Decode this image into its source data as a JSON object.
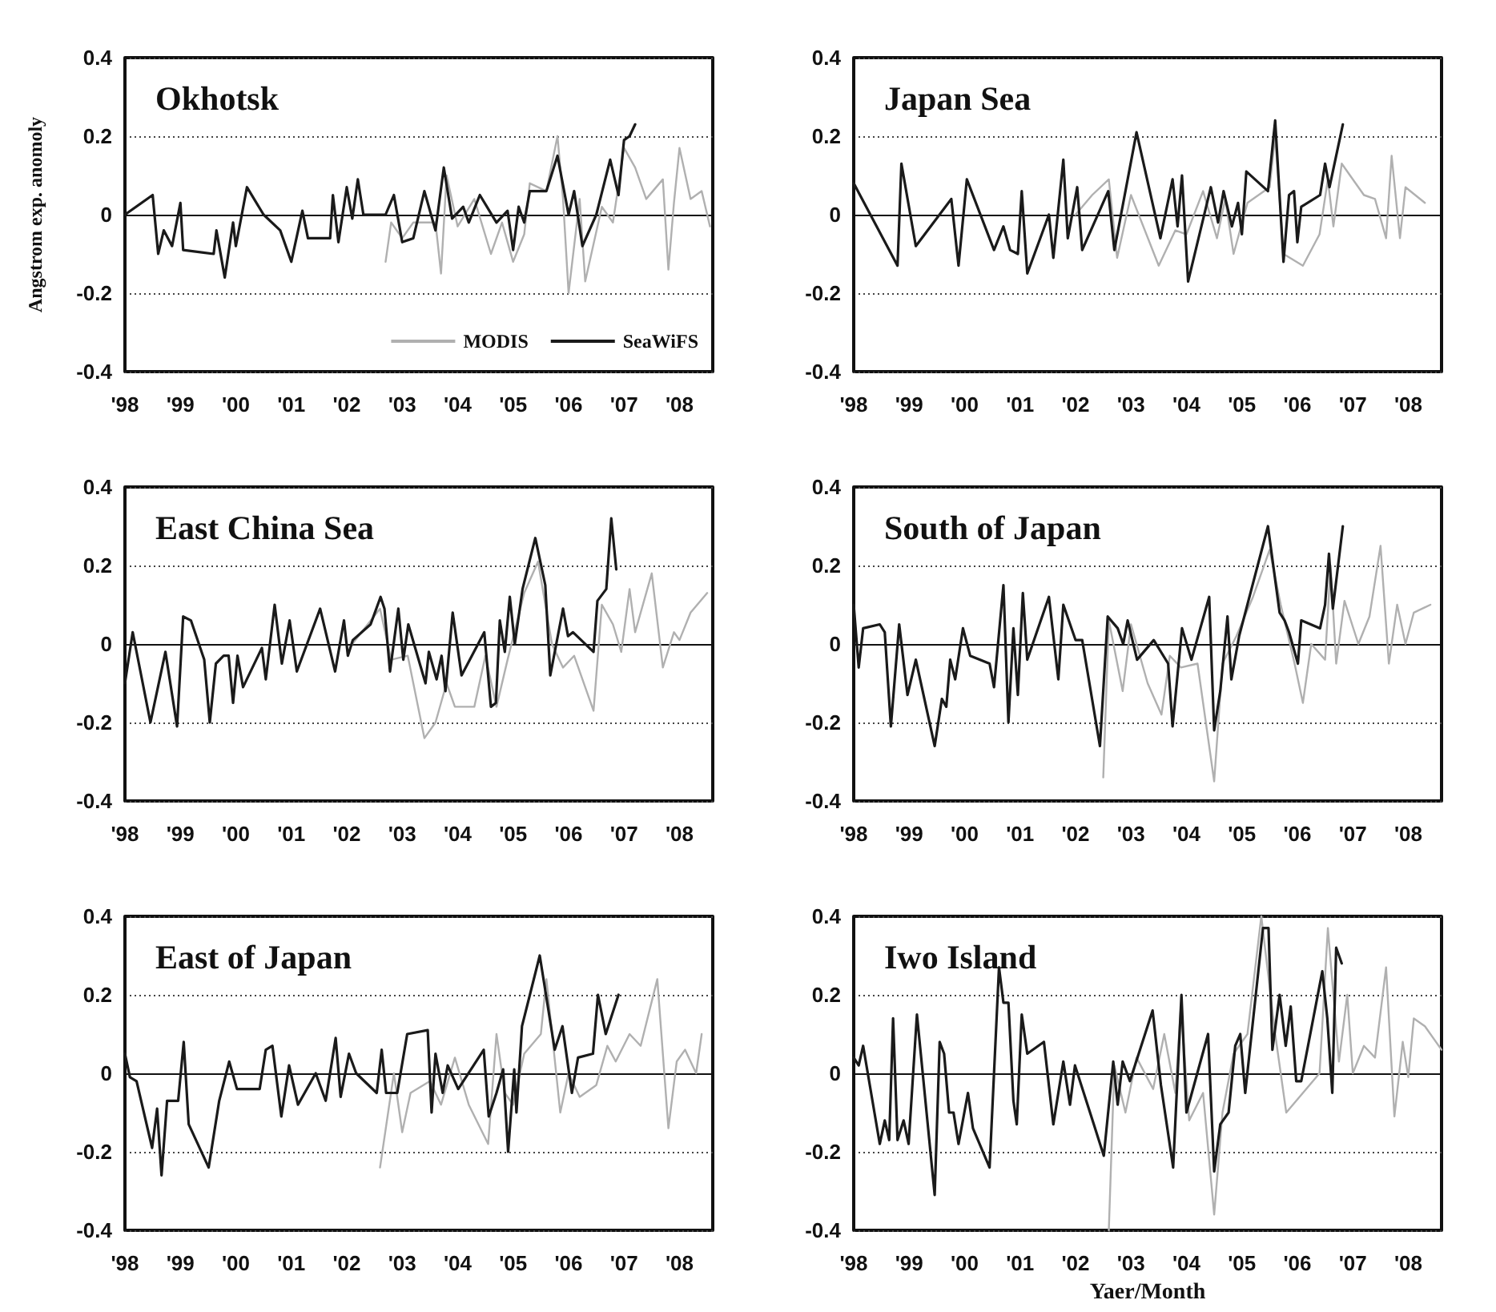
{
  "chart_data": [
    {
      "type": "line",
      "title": "Okhotsk",
      "ylabel": "Angstrom exp. anomoly",
      "legend": "bottom right",
      "grid": "y",
      "marker": "none",
      "xlim": [
        1998,
        2008.6
      ],
      "ylim": [
        -0.4,
        0.4
      ],
      "yticks": [
        -0.4,
        -0.2,
        0,
        0.2,
        0.4
      ],
      "xticks": [
        {
          "value": 1998,
          "label": "'98"
        },
        {
          "value": 1999,
          "label": "'99"
        },
        {
          "value": 2000,
          "label": "'00"
        },
        {
          "value": 2001,
          "label": "'01"
        },
        {
          "value": 2002,
          "label": "'02"
        },
        {
          "value": 2003,
          "label": "'03"
        },
        {
          "value": 2004,
          "label": "'04"
        },
        {
          "value": 2005,
          "label": "'05"
        },
        {
          "value": 2006,
          "label": "'06"
        },
        {
          "value": 2007,
          "label": "'07"
        },
        {
          "value": 2008,
          "label": "'08"
        }
      ],
      "series": [
        {
          "name": "MODIS",
          "color": "#b0b0b0",
          "x": [
            2002.7,
            2002.8,
            2003.0,
            2003.2,
            2003.6,
            2003.7,
            2003.8,
            2004.0,
            2004.3,
            2004.6,
            2004.8,
            2005.0,
            2005.2,
            2005.3,
            2005.6,
            2005.8,
            2005.9,
            2006.0,
            2006.2,
            2006.3,
            2006.6,
            2006.8,
            2007.0,
            2007.2,
            2007.4,
            2007.7,
            2007.8,
            2007.9,
            2008.0,
            2008.2,
            2008.4,
            2008.55
          ],
          "values": [
            -0.12,
            -0.02,
            -0.06,
            -0.02,
            -0.02,
            -0.15,
            0.1,
            -0.03,
            0.04,
            -0.1,
            -0.02,
            -0.12,
            -0.05,
            0.08,
            0.06,
            0.2,
            0.04,
            -0.2,
            0.04,
            -0.17,
            0.02,
            -0.02,
            0.17,
            0.12,
            0.04,
            0.09,
            -0.14,
            0.03,
            0.17,
            0.04,
            0.06,
            -0.03
          ]
        },
        {
          "name": "SeaWiFS",
          "color": "#1a1a1a",
          "x": [
            1998,
            1998.5,
            1998.6,
            1998.7,
            1998.85,
            1999.0,
            1999.05,
            1999.6,
            1999.65,
            1999.8,
            1999.95,
            2000.0,
            2000.2,
            2000.5,
            2000.8,
            2001.0,
            2001.2,
            2001.3,
            2001.7,
            2001.75,
            2001.85,
            2002.0,
            2002.1,
            2002.2,
            2002.3,
            2002.7,
            2002.85,
            2003.0,
            2003.2,
            2003.4,
            2003.6,
            2003.75,
            2003.9,
            2004.1,
            2004.2,
            2004.4,
            2004.7,
            2004.9,
            2005.0,
            2005.1,
            2005.2,
            2005.3,
            2005.6,
            2005.8,
            2006.0,
            2006.1,
            2006.25,
            2006.5,
            2006.75,
            2006.9,
            2007.0,
            2007.1,
            2007.2
          ],
          "values": [
            0.0,
            0.05,
            -0.1,
            -0.04,
            -0.08,
            0.03,
            -0.09,
            -0.1,
            -0.04,
            -0.16,
            -0.02,
            -0.08,
            0.07,
            0.0,
            -0.04,
            -0.12,
            0.01,
            -0.06,
            -0.06,
            0.05,
            -0.07,
            0.07,
            -0.01,
            0.09,
            0.0,
            0.0,
            0.05,
            -0.07,
            -0.06,
            0.06,
            -0.04,
            0.12,
            -0.01,
            0.02,
            -0.02,
            0.05,
            -0.02,
            0.01,
            -0.09,
            0.02,
            -0.02,
            0.06,
            0.06,
            0.15,
            0.0,
            0.06,
            -0.08,
            0.0,
            0.14,
            0.05,
            0.19,
            0.2,
            0.23
          ]
        }
      ]
    },
    {
      "type": "line",
      "title": "Japan Sea",
      "grid": "y",
      "marker": "none",
      "xlim": [
        1998,
        2008.6
      ],
      "ylim": [
        -0.4,
        0.4
      ],
      "yticks": [
        -0.4,
        -0.2,
        0,
        0.2,
        0.4
      ],
      "xticks": [
        {
          "value": 1998,
          "label": "'98"
        },
        {
          "value": 1999,
          "label": "'99"
        },
        {
          "value": 2000,
          "label": "'00"
        },
        {
          "value": 2001,
          "label": "'01"
        },
        {
          "value": 2002,
          "label": "'02"
        },
        {
          "value": 2003,
          "label": "'03"
        },
        {
          "value": 2004,
          "label": "'04"
        },
        {
          "value": 2005,
          "label": "'05"
        },
        {
          "value": 2006,
          "label": "'06"
        },
        {
          "value": 2007,
          "label": "'07"
        },
        {
          "value": 2008,
          "label": "'08"
        }
      ],
      "series": [
        {
          "color": "#b0b0b0",
          "x": [
            2002.0,
            2002.3,
            2002.6,
            2002.75,
            2003.0,
            2003.5,
            2003.8,
            2004.0,
            2004.3,
            2004.55,
            2004.7,
            2004.85,
            2005.1,
            2005.5,
            2005.6,
            2005.75,
            2006.1,
            2006.4,
            2006.55,
            2006.65,
            2006.8,
            2006.95,
            2007.2,
            2007.4,
            2007.6,
            2007.7,
            2007.85,
            2007.95,
            2008.3
          ],
          "values": [
            0.0,
            0.05,
            0.09,
            -0.11,
            0.05,
            -0.13,
            -0.04,
            -0.05,
            0.06,
            -0.06,
            0.04,
            -0.1,
            0.03,
            0.07,
            0.2,
            -0.1,
            -0.13,
            -0.05,
            0.09,
            -0.03,
            0.13,
            0.1,
            0.05,
            0.04,
            -0.06,
            0.15,
            -0.06,
            0.07,
            0.03
          ]
        },
        {
          "color": "#1a1a1a",
          "x": [
            1998,
            1998.79,
            1998.86,
            1999.12,
            1999.76,
            1999.89,
            2000.04,
            2000.53,
            2000.7,
            2000.82,
            2000.96,
            2001.03,
            2001.13,
            2001.52,
            2001.6,
            2001.78,
            2001.86,
            2002.03,
            2002.12,
            2002.59,
            2002.7,
            2003.1,
            2003.53,
            2003.75,
            2003.84,
            2003.92,
            2004.03,
            2004.44,
            2004.57,
            2004.67,
            2004.82,
            2004.93,
            2005.0,
            2005.08,
            2005.47,
            2005.6,
            2005.75,
            2005.85,
            2005.94,
            2006.0,
            2006.07,
            2006.41,
            2006.5,
            2006.58,
            2006.82
          ],
          "values": [
            0.08,
            -0.13,
            0.13,
            -0.08,
            0.04,
            -0.13,
            0.09,
            -0.09,
            -0.03,
            -0.09,
            -0.1,
            0.06,
            -0.15,
            0.0,
            -0.11,
            0.14,
            -0.06,
            0.07,
            -0.09,
            0.06,
            -0.09,
            0.21,
            -0.06,
            0.09,
            -0.03,
            0.1,
            -0.17,
            0.07,
            -0.02,
            0.06,
            -0.03,
            0.03,
            -0.05,
            0.11,
            0.06,
            0.24,
            -0.12,
            0.05,
            0.06,
            -0.07,
            0.02,
            0.05,
            0.13,
            0.07,
            0.23
          ]
        }
      ]
    },
    {
      "type": "line",
      "title": "East China Sea",
      "grid": "y",
      "marker": "none",
      "xlim": [
        1998,
        2008.6
      ],
      "ylim": [
        -0.4,
        0.4
      ],
      "yticks": [
        -0.4,
        -0.2,
        0,
        0.2,
        0.4
      ],
      "xticks": [
        {
          "value": 1998,
          "label": "'98"
        },
        {
          "value": 1999,
          "label": "'99"
        },
        {
          "value": 2000,
          "label": "'00"
        },
        {
          "value": 2001,
          "label": "'01"
        },
        {
          "value": 2002,
          "label": "'02"
        },
        {
          "value": 2003,
          "label": "'03"
        },
        {
          "value": 2004,
          "label": "'04"
        },
        {
          "value": 2005,
          "label": "'05"
        },
        {
          "value": 2006,
          "label": "'06"
        },
        {
          "value": 2007,
          "label": "'07"
        },
        {
          "value": 2008,
          "label": "'08"
        }
      ],
      "series": [
        {
          "color": "#b0b0b0",
          "x": [
            2002.1,
            2002.6,
            2002.8,
            2003.1,
            2003.4,
            2003.6,
            2003.8,
            2003.95,
            2004.3,
            2004.5,
            2004.7,
            2004.9,
            2005.2,
            2005.45,
            2005.7,
            2005.9,
            2006.1,
            2006.45,
            2006.6,
            2006.8,
            2006.95,
            2007.1,
            2007.2,
            2007.5,
            2007.7,
            2007.9,
            2008.0,
            2008.2,
            2008.5
          ],
          "values": [
            0.0,
            0.09,
            -0.04,
            -0.03,
            -0.24,
            -0.2,
            -0.1,
            -0.16,
            -0.16,
            -0.03,
            -0.16,
            -0.04,
            0.13,
            0.21,
            0.0,
            -0.06,
            -0.03,
            -0.17,
            0.1,
            0.05,
            -0.02,
            0.14,
            0.03,
            0.18,
            -0.06,
            0.03,
            0.01,
            0.08,
            0.13
          ]
        },
        {
          "color": "#1a1a1a",
          "x": [
            1998,
            1998.14,
            1998.46,
            1998.73,
            1998.94,
            1999.05,
            1999.19,
            1999.43,
            1999.53,
            1999.64,
            1999.78,
            1999.87,
            1999.95,
            2000.03,
            2000.13,
            2000.47,
            2000.54,
            2000.7,
            2000.83,
            2000.97,
            2001.1,
            2001.52,
            2001.79,
            2001.95,
            2002.02,
            2002.11,
            2002.43,
            2002.61,
            2002.68,
            2002.78,
            2002.93,
            2003.02,
            2003.11,
            2003.42,
            2003.48,
            2003.62,
            2003.71,
            2003.78,
            2003.91,
            2004.07,
            2004.48,
            2004.6,
            2004.69,
            2004.76,
            2004.85,
            2004.94,
            2005.03,
            2005.17,
            2005.4,
            2005.58,
            2005.67,
            2005.9,
            2005.99,
            2006.08,
            2006.45,
            2006.52,
            2006.68,
            2006.77,
            2006.86
          ],
          "values": [
            -0.1,
            0.03,
            -0.2,
            -0.02,
            -0.21,
            0.07,
            0.06,
            -0.04,
            -0.2,
            -0.05,
            -0.03,
            -0.03,
            -0.15,
            -0.03,
            -0.11,
            -0.01,
            -0.09,
            0.1,
            -0.05,
            0.06,
            -0.07,
            0.09,
            -0.07,
            0.06,
            -0.03,
            0.01,
            0.05,
            0.12,
            0.09,
            -0.07,
            0.09,
            -0.04,
            0.05,
            -0.1,
            -0.02,
            -0.09,
            -0.03,
            -0.12,
            0.08,
            -0.08,
            0.03,
            -0.16,
            -0.15,
            0.06,
            -0.02,
            0.12,
            0.0,
            0.14,
            0.27,
            0.15,
            -0.08,
            0.09,
            0.02,
            0.03,
            -0.02,
            0.11,
            0.14,
            0.32,
            0.19
          ]
        }
      ]
    },
    {
      "type": "line",
      "title": "South of Japan",
      "grid": "y",
      "marker": "none",
      "xlim": [
        1998,
        2008.6
      ],
      "ylim": [
        -0.4,
        0.4
      ],
      "yticks": [
        -0.4,
        -0.2,
        0,
        0.2,
        0.4
      ],
      "xticks": [
        {
          "value": 1998,
          "label": "'98"
        },
        {
          "value": 1999,
          "label": "'99"
        },
        {
          "value": 2000,
          "label": "'00"
        },
        {
          "value": 2001,
          "label": "'01"
        },
        {
          "value": 2002,
          "label": "'02"
        },
        {
          "value": 2003,
          "label": "'03"
        },
        {
          "value": 2004,
          "label": "'04"
        },
        {
          "value": 2005,
          "label": "'05"
        },
        {
          "value": 2006,
          "label": "'06"
        },
        {
          "value": 2007,
          "label": "'07"
        },
        {
          "value": 2008,
          "label": "'08"
        }
      ],
      "series": [
        {
          "color": "#b0b0b0",
          "x": [
            2002.5,
            2002.6,
            2002.85,
            2003.0,
            2003.3,
            2003.55,
            2003.7,
            2003.9,
            2004.2,
            2004.5,
            2004.65,
            2004.9,
            2005.2,
            2005.5,
            2005.7,
            2005.95,
            2006.1,
            2006.25,
            2006.5,
            2006.6,
            2006.7,
            2006.85,
            2007.1,
            2007.3,
            2007.5,
            2007.65,
            2007.8,
            2007.95,
            2008.1,
            2008.4
          ],
          "values": [
            -0.34,
            0.06,
            -0.12,
            0.05,
            -0.1,
            -0.18,
            -0.03,
            -0.06,
            -0.05,
            -0.35,
            -0.05,
            0.02,
            0.12,
            0.24,
            0.1,
            -0.05,
            -0.15,
            0.0,
            -0.04,
            0.2,
            -0.05,
            0.11,
            0.0,
            0.07,
            0.25,
            -0.05,
            0.1,
            0.0,
            0.08,
            0.1
          ]
        },
        {
          "color": "#1a1a1a",
          "x": [
            1998,
            1998.09,
            1998.17,
            1998.47,
            1998.56,
            1998.67,
            1998.82,
            1998.97,
            1999.12,
            1999.46,
            1999.59,
            1999.67,
            1999.74,
            1999.83,
            1999.97,
            2000.1,
            2000.45,
            2000.53,
            2000.7,
            2000.79,
            2000.88,
            2000.96,
            2001.05,
            2001.13,
            2001.52,
            2001.69,
            2001.78,
            2002.0,
            2002.12,
            2002.44,
            2002.58,
            2002.76,
            2002.86,
            2002.94,
            2003.11,
            2003.41,
            2003.67,
            2003.75,
            2003.92,
            2004.09,
            2004.41,
            2004.5,
            2004.61,
            2004.74,
            2004.81,
            2004.95,
            2005.47,
            2005.68,
            2005.77,
            2005.85,
            2006.01,
            2006.07,
            2006.41,
            2006.5,
            2006.57,
            2006.64,
            2006.82
          ],
          "values": [
            0.1,
            -0.06,
            0.04,
            0.05,
            0.03,
            -0.21,
            0.05,
            -0.13,
            -0.04,
            -0.26,
            -0.14,
            -0.16,
            -0.04,
            -0.09,
            0.04,
            -0.03,
            -0.05,
            -0.11,
            0.15,
            -0.2,
            0.04,
            -0.13,
            0.13,
            -0.04,
            0.12,
            -0.09,
            0.1,
            0.01,
            0.01,
            -0.26,
            0.07,
            0.04,
            0.0,
            0.06,
            -0.04,
            0.01,
            -0.05,
            -0.21,
            0.04,
            -0.04,
            0.12,
            -0.22,
            -0.12,
            0.07,
            -0.09,
            0.02,
            0.3,
            0.08,
            0.06,
            0.03,
            -0.05,
            0.06,
            0.04,
            0.1,
            0.23,
            0.09,
            0.3
          ]
        }
      ]
    },
    {
      "type": "line",
      "title": "East of Japan",
      "grid": "y",
      "marker": "none",
      "xlim": [
        1998,
        2008.6
      ],
      "ylim": [
        -0.4,
        0.4
      ],
      "yticks": [
        -0.4,
        -0.2,
        0,
        0.2,
        0.4
      ],
      "xticks": [
        {
          "value": 1998,
          "label": "'98"
        },
        {
          "value": 1999,
          "label": "'99"
        },
        {
          "value": 2000,
          "label": "'00"
        },
        {
          "value": 2001,
          "label": "'01"
        },
        {
          "value": 2002,
          "label": "'02"
        },
        {
          "value": 2003,
          "label": "'03"
        },
        {
          "value": 2004,
          "label": "'04"
        },
        {
          "value": 2005,
          "label": "'05"
        },
        {
          "value": 2006,
          "label": "'06"
        },
        {
          "value": 2007,
          "label": "'07"
        },
        {
          "value": 2008,
          "label": "'08"
        }
      ],
      "series": [
        {
          "color": "#b0b0b0",
          "x": [
            2002.6,
            2002.85,
            2003.0,
            2003.15,
            2003.5,
            2003.7,
            2003.95,
            2004.2,
            2004.55,
            2004.7,
            2004.85,
            2005.0,
            2005.2,
            2005.5,
            2005.6,
            2005.85,
            2006.0,
            2006.2,
            2006.5,
            2006.7,
            2006.85,
            2007.1,
            2007.3,
            2007.6,
            2007.8,
            2007.95,
            2008.1,
            2008.3,
            2008.4
          ],
          "values": [
            -0.24,
            0.0,
            -0.15,
            -0.05,
            -0.02,
            -0.08,
            0.04,
            -0.08,
            -0.18,
            0.1,
            -0.05,
            -0.08,
            0.05,
            0.1,
            0.24,
            -0.1,
            0.0,
            -0.06,
            -0.03,
            0.07,
            0.03,
            0.1,
            0.07,
            0.24,
            -0.14,
            0.03,
            0.06,
            0.0,
            0.1
          ]
        },
        {
          "color": "#1a1a1a",
          "x": [
            1998,
            1998.09,
            1998.21,
            1998.49,
            1998.58,
            1998.66,
            1998.76,
            1998.96,
            1999.06,
            1999.15,
            1999.51,
            1999.7,
            1999.88,
            2000.02,
            2000.43,
            2000.54,
            2000.66,
            2000.82,
            2000.96,
            2001.12,
            2001.44,
            2001.62,
            2001.8,
            2001.89,
            2002.04,
            2002.17,
            2002.54,
            2002.63,
            2002.71,
            2002.91,
            2003.09,
            2003.46,
            2003.53,
            2003.6,
            2003.73,
            2003.82,
            2004.01,
            2004.47,
            2004.56,
            2004.7,
            2004.82,
            2004.91,
            2005.02,
            2005.06,
            2005.16,
            2005.48,
            2005.75,
            2005.89,
            2006.06,
            2006.17,
            2006.44,
            2006.53,
            2006.67,
            2006.9
          ],
          "values": [
            0.05,
            -0.01,
            -0.02,
            -0.19,
            -0.09,
            -0.26,
            -0.07,
            -0.07,
            0.08,
            -0.13,
            -0.24,
            -0.07,
            0.03,
            -0.04,
            -0.04,
            0.06,
            0.07,
            -0.11,
            0.02,
            -0.08,
            0.0,
            -0.07,
            0.09,
            -0.06,
            0.05,
            0.0,
            -0.05,
            0.06,
            -0.05,
            -0.05,
            0.1,
            0.11,
            -0.1,
            0.05,
            -0.05,
            0.02,
            -0.04,
            0.06,
            -0.11,
            -0.05,
            0.01,
            -0.2,
            0.01,
            -0.1,
            0.12,
            0.3,
            0.06,
            0.12,
            -0.05,
            0.04,
            0.05,
            0.2,
            0.1,
            0.2
          ]
        }
      ]
    },
    {
      "type": "line",
      "title": "Iwo Island",
      "xlabel": "Yaer/Month",
      "grid": "y",
      "marker": "none",
      "xlim": [
        1998,
        2008.6
      ],
      "ylim": [
        -0.4,
        0.4
      ],
      "yticks": [
        -0.4,
        -0.2,
        0,
        0.2,
        0.4
      ],
      "xticks": [
        {
          "value": 1998,
          "label": "'98"
        },
        {
          "value": 1999,
          "label": "'99"
        },
        {
          "value": 2000,
          "label": "'00"
        },
        {
          "value": 2001,
          "label": "'01"
        },
        {
          "value": 2002,
          "label": "'02"
        },
        {
          "value": 2003,
          "label": "'03"
        },
        {
          "value": 2004,
          "label": "'04"
        },
        {
          "value": 2005,
          "label": "'05"
        },
        {
          "value": 2006,
          "label": "'06"
        },
        {
          "value": 2007,
          "label": "'07"
        },
        {
          "value": 2008,
          "label": "'08"
        }
      ],
      "series": [
        {
          "color": "#b0b0b0",
          "x": [
            2002.6,
            2002.7,
            2002.9,
            2003.1,
            2003.4,
            2003.6,
            2003.8,
            2003.9,
            2004.05,
            2004.3,
            2004.5,
            2004.65,
            2004.85,
            2005.1,
            2005.35,
            2005.6,
            2005.8,
            2006.1,
            2006.4,
            2006.55,
            2006.75,
            2006.9,
            2007.0,
            2007.2,
            2007.4,
            2007.6,
            2007.75,
            2007.9,
            2008.0,
            2008.1,
            2008.3,
            2008.6
          ],
          "values": [
            -0.4,
            0.02,
            -0.1,
            0.04,
            -0.04,
            0.1,
            -0.05,
            0.17,
            -0.12,
            -0.05,
            -0.36,
            -0.1,
            0.05,
            0.1,
            0.4,
            0.1,
            -0.1,
            -0.05,
            0.0,
            0.37,
            0.03,
            0.2,
            0.0,
            0.07,
            0.04,
            0.27,
            -0.11,
            0.08,
            -0.01,
            0.14,
            0.12,
            0.06
          ]
        },
        {
          "color": "#1a1a1a",
          "x": [
            1998,
            1998.09,
            1998.17,
            1998.47,
            1998.56,
            1998.64,
            1998.71,
            1998.79,
            1998.9,
            1998.99,
            1999.14,
            1999.46,
            1999.55,
            1999.63,
            1999.72,
            1999.8,
            1999.89,
            2000.06,
            2000.15,
            2000.45,
            2000.62,
            2000.7,
            2000.79,
            2000.88,
            2000.94,
            2001.03,
            2001.13,
            2001.43,
            2001.6,
            2001.78,
            2001.9,
            2001.99,
            2002.33,
            2002.51,
            2002.68,
            2002.76,
            2002.85,
            2002.98,
            2003.39,
            2003.54,
            2003.76,
            2003.91,
            2004.0,
            2004.39,
            2004.5,
            2004.61,
            2004.76,
            2004.88,
            2004.97,
            2005.06,
            2005.38,
            2005.48,
            2005.55,
            2005.68,
            2005.79,
            2005.88,
            2005.98,
            2006.07,
            2006.45,
            2006.54,
            2006.63,
            2006.7,
            2006.8
          ],
          "values": [
            0.04,
            0.02,
            0.07,
            -0.18,
            -0.12,
            -0.17,
            0.14,
            -0.17,
            -0.12,
            -0.18,
            0.15,
            -0.31,
            0.08,
            0.05,
            -0.1,
            -0.1,
            -0.18,
            -0.05,
            -0.14,
            -0.24,
            0.27,
            0.18,
            0.18,
            -0.07,
            -0.13,
            0.15,
            0.05,
            0.08,
            -0.13,
            0.03,
            -0.08,
            0.02,
            -0.13,
            -0.21,
            0.03,
            -0.08,
            0.03,
            -0.02,
            0.16,
            -0.03,
            -0.24,
            0.2,
            -0.1,
            0.1,
            -0.25,
            -0.13,
            -0.1,
            0.07,
            0.1,
            -0.05,
            0.37,
            0.37,
            0.06,
            0.2,
            0.07,
            0.17,
            -0.02,
            -0.02,
            0.26,
            0.14,
            -0.05,
            0.32,
            0.28
          ]
        }
      ]
    }
  ]
}
